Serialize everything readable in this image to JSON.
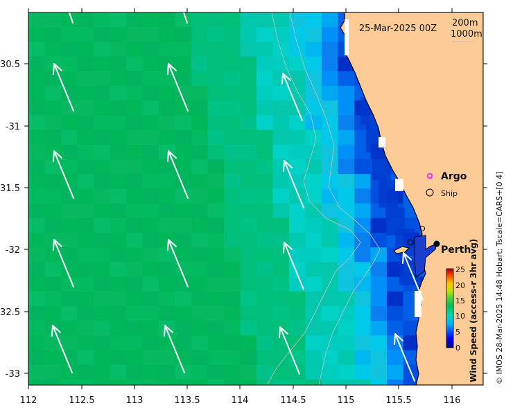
{
  "title": "25-Mar-2025 00Z",
  "legend": {
    "contours": [
      "200m",
      "1000m"
    ],
    "argo_label": "Argo",
    "ship_label": "Ship"
  },
  "place": {
    "name": "Perth",
    "lon": 115.86,
    "lat": -31.95
  },
  "axes": {
    "xticks": [
      "112",
      "112.5",
      "113",
      "113.5",
      "114",
      "114.5",
      "115",
      "115.5",
      "116"
    ],
    "yticks": [
      "-30.5",
      "-31",
      "-31.5",
      "-32",
      "-32.5",
      "-33"
    ],
    "xlim": [
      112,
      116.3
    ],
    "ylim": [
      -33.1,
      -30.05
    ]
  },
  "colorbar": {
    "title": "Wind Speed (access-r 3hr avg)",
    "ticks": [
      "25",
      "20",
      "15",
      "10",
      "5",
      "0"
    ],
    "range": [
      0,
      25
    ]
  },
  "copyright": "© IMOS 28-Mar-2025 14:48 Hobart; Tscale=CARS+[0 4]",
  "colors": {
    "land": "#fccb96",
    "coast": "#000000",
    "arrow": "#ffffff",
    "contour": "#bdbdbd",
    "argo": "#ff00ff"
  }
}
